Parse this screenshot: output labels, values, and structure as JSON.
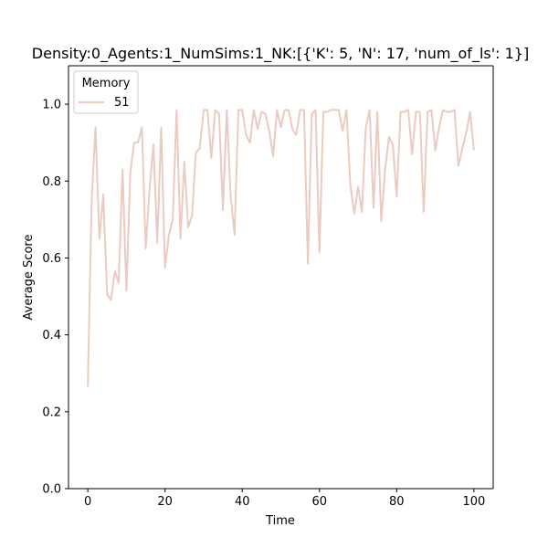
{
  "chart_data": {
    "type": "line",
    "title": "Density:0_Agents:1_NumSims:1_NK:[{'K': 5, 'N': 17, 'num_of_ls': 1}]",
    "xlabel": "Time",
    "ylabel": "Average Score",
    "xlim": [
      -5,
      105
    ],
    "ylim": [
      0.0,
      1.1
    ],
    "xticks": [
      "0",
      "20",
      "40",
      "60",
      "80",
      "100"
    ],
    "yticks": [
      "0.0",
      "0.2",
      "0.4",
      "0.6",
      "0.8",
      "1.0"
    ],
    "grid": false,
    "legend": {
      "title": "Memory",
      "placement": "top-left"
    },
    "series": [
      {
        "name": "51",
        "color": "#ebcac2",
        "x": [
          0,
          1,
          2,
          3,
          4,
          5,
          6,
          7,
          8,
          9,
          10,
          11,
          12,
          13,
          14,
          15,
          16,
          17,
          18,
          19,
          20,
          21,
          22,
          23,
          24,
          25,
          26,
          27,
          28,
          29,
          30,
          31,
          32,
          33,
          34,
          35,
          36,
          37,
          38,
          39,
          40,
          41,
          42,
          43,
          44,
          45,
          46,
          47,
          48,
          49,
          50,
          51,
          52,
          53,
          54,
          55,
          56,
          57,
          58,
          59,
          60,
          61,
          62,
          63,
          64,
          65,
          66,
          67,
          68,
          69,
          70,
          71,
          72,
          73,
          74,
          75,
          76,
          77,
          78,
          79,
          80,
          81,
          82,
          83,
          84,
          85,
          86,
          87,
          88,
          89,
          90,
          91,
          92,
          93,
          94,
          95,
          96,
          97,
          98,
          99,
          100
        ],
        "values": [
          0.265,
          0.75,
          0.94,
          0.65,
          0.765,
          0.505,
          0.49,
          0.565,
          0.535,
          0.83,
          0.515,
          0.82,
          0.9,
          0.9,
          0.94,
          0.625,
          0.78,
          0.895,
          0.64,
          0.94,
          0.575,
          0.66,
          0.7,
          0.985,
          0.65,
          0.85,
          0.68,
          0.71,
          0.875,
          0.885,
          0.985,
          0.985,
          0.86,
          0.985,
          0.975,
          0.725,
          0.985,
          0.76,
          0.66,
          0.985,
          0.985,
          0.92,
          0.9,
          0.985,
          0.935,
          0.98,
          0.975,
          0.93,
          0.865,
          0.985,
          0.94,
          0.985,
          0.985,
          0.935,
          0.92,
          0.985,
          0.985,
          0.585,
          0.975,
          0.985,
          0.615,
          0.98,
          0.98,
          0.985,
          0.985,
          0.985,
          0.93,
          0.985,
          0.79,
          0.715,
          0.785,
          0.72,
          0.94,
          0.985,
          0.73,
          0.98,
          0.695,
          0.83,
          0.915,
          0.895,
          0.76,
          0.98,
          0.98,
          0.985,
          0.87,
          0.98,
          0.98,
          0.72,
          0.98,
          0.985,
          0.88,
          0.94,
          0.985,
          0.98,
          0.98,
          0.985,
          0.84,
          0.885,
          0.925,
          0.98,
          0.88
        ]
      }
    ]
  }
}
